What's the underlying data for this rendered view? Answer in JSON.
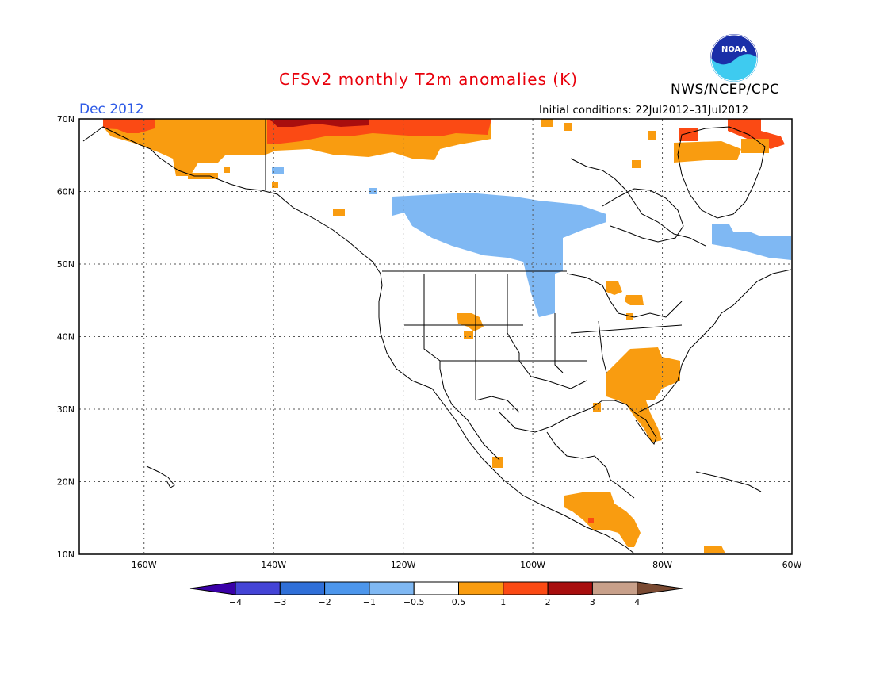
{
  "header": {
    "title": "CFSv2 monthly T2m anomalies (K)",
    "month": "Dec 2012",
    "org": "NWS/NCEP/CPC",
    "init_conditions": "Initial conditions: 22Jul2012–31Jul2012",
    "logo_text": "NOAA"
  },
  "map": {
    "lon_range": [
      -170,
      -60
    ],
    "lat_range": [
      10,
      70
    ],
    "lat_labels": [
      "70N",
      "60N",
      "50N",
      "40N",
      "30N",
      "20N",
      "10N"
    ],
    "lon_labels": [
      "160W",
      "140W",
      "120W",
      "100W",
      "80W",
      "60W"
    ],
    "grid": "dotted"
  },
  "legend": {
    "ticks": [
      "−4",
      "−3",
      "−2",
      "−1",
      "−0.5",
      "0.5",
      "1",
      "2",
      "3",
      "4"
    ],
    "colors": [
      "#3a00a8",
      "#4444d6",
      "#2f6fd8",
      "#4c96ec",
      "#7fb8f3",
      "#ffffff",
      "#f99c10",
      "#fb4a14",
      "#a80e0e",
      "#c8a08a",
      "#7a4a32"
    ]
  },
  "colors": {
    "warm1": "#f99c10",
    "warm2": "#fb4a14",
    "warm3": "#a80e0e",
    "cool1": "#7fb8f3"
  }
}
